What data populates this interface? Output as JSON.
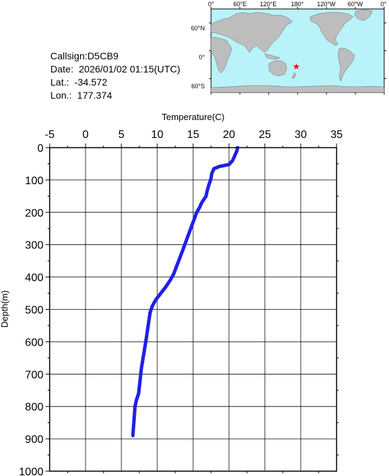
{
  "info": {
    "callsign": "Callsign:D5CB9",
    "date": "Date:  2026/01/02 01:15(UTC)",
    "lat": "Lat.:  -34.572",
    "lon": "Lon.:  177.374"
  },
  "map": {
    "lon_labels": [
      "0°",
      "60°E",
      "120°E",
      "180°",
      "120°W",
      "60°W",
      "0°"
    ],
    "lat_labels": [
      "60°N",
      "0°",
      "60°S"
    ],
    "marker": {
      "lat": -34.572,
      "lon": 177.374
    },
    "colors": {
      "ocean": "#b9f3f9",
      "land": "#bdbdbd",
      "marker": "#ff0000"
    }
  },
  "chart_data": {
    "type": "line",
    "xlabel": "Temperature(C)",
    "ylabel": "Depth(m)",
    "xlim": [
      -5,
      35
    ],
    "ylim": [
      0,
      1000
    ],
    "y_inverted": true,
    "x_axis_position": "top",
    "grid": true,
    "xticks": [
      -5,
      0,
      5,
      10,
      15,
      20,
      25,
      30,
      35
    ],
    "yticks": [
      0,
      100,
      200,
      300,
      400,
      500,
      600,
      700,
      800,
      900,
      1000
    ],
    "series_color": "#2020e6",
    "series": [
      {
        "x": [
          21.2,
          21.1,
          20.8,
          20.5,
          20.0,
          18.7,
          17.9,
          17.6,
          17.5,
          17.2,
          17.0,
          16.8,
          16.2,
          15.9,
          15.5,
          15.0,
          14.5,
          14.0,
          13.5,
          12.9,
          12.3,
          11.8,
          11.2,
          10.5,
          9.8,
          9.3,
          9.0,
          8.8,
          8.6,
          8.4,
          8.1,
          7.8,
          7.6,
          7.4,
          7.1,
          6.9,
          6.8,
          6.7,
          6.6
        ],
        "y": [
          0,
          10,
          25,
          40,
          52,
          58,
          65,
          80,
          95,
          115,
          130,
          150,
          170,
          185,
          200,
          230,
          260,
          290,
          320,
          355,
          390,
          410,
          430,
          450,
          470,
          490,
          510,
          540,
          570,
          600,
          640,
          680,
          720,
          760,
          780,
          800,
          830,
          860,
          890
        ]
      }
    ]
  }
}
